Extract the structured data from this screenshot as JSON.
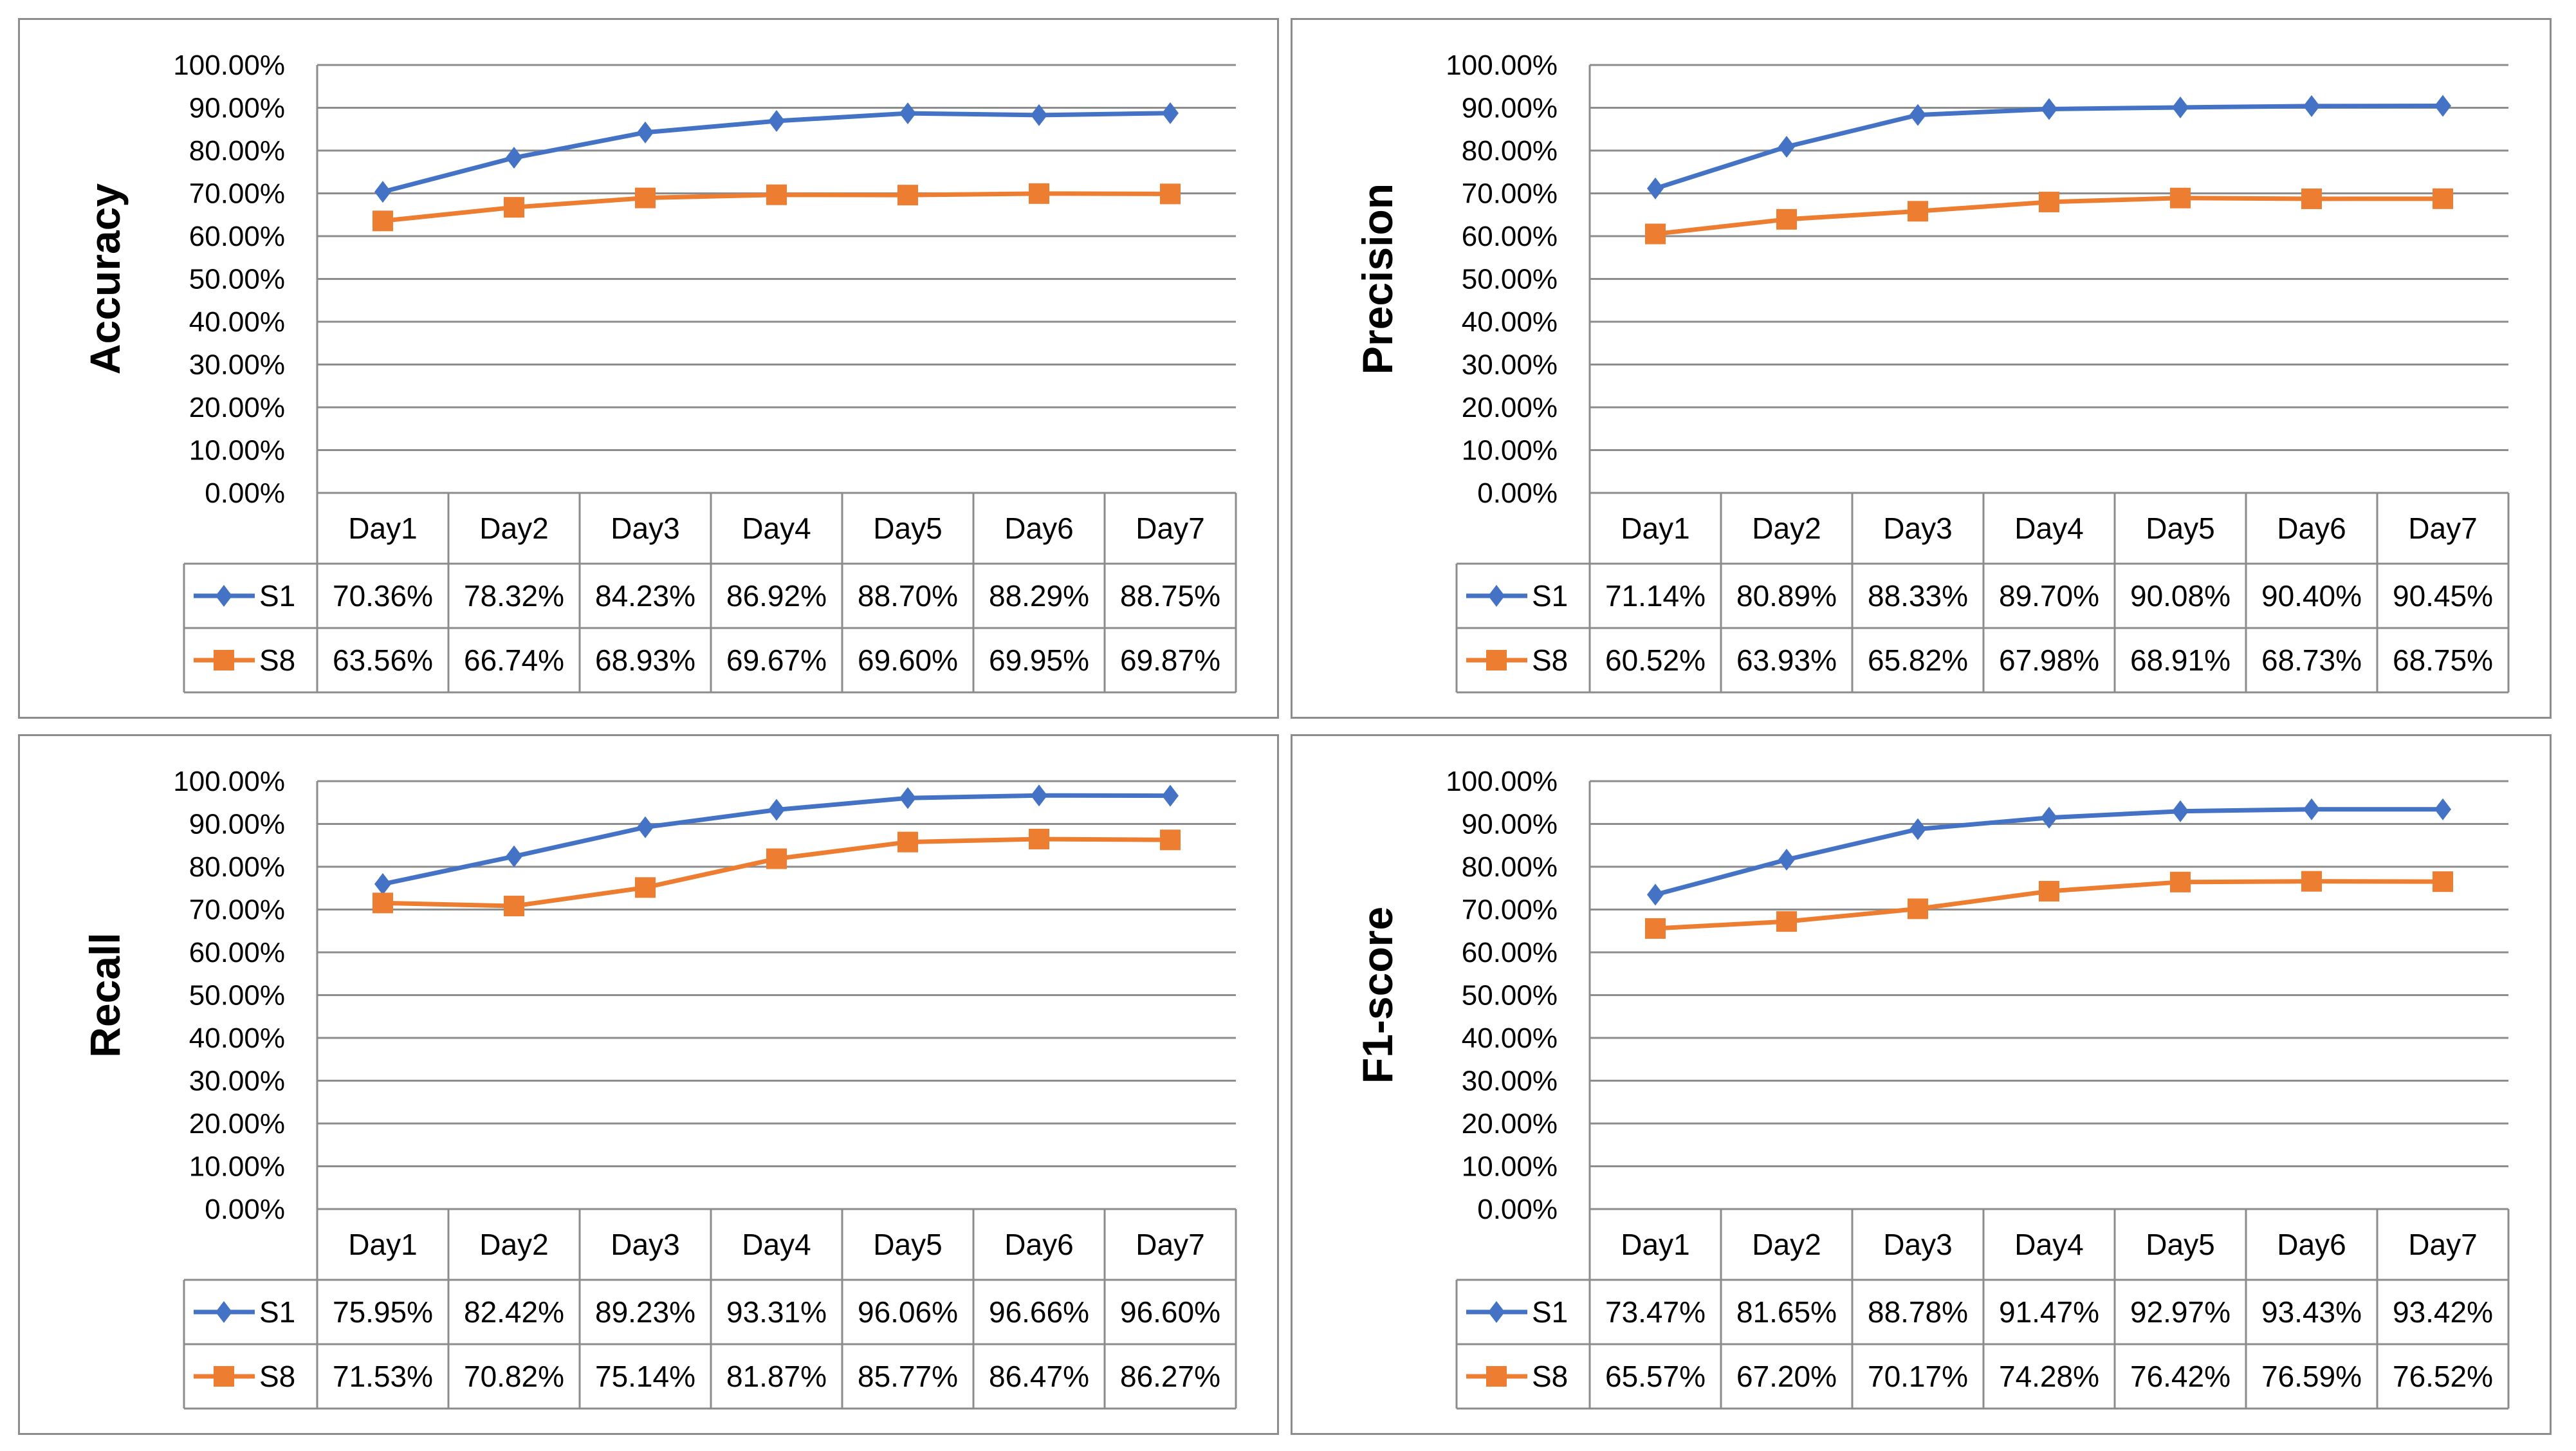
{
  "chart_data": [
    {
      "type": "line",
      "title": "",
      "ylabel": "Accuracy",
      "xlabel": "",
      "ylim": [
        0,
        100
      ],
      "yticks": [
        "0.00%",
        "10.00%",
        "20.00%",
        "30.00%",
        "40.00%",
        "50.00%",
        "60.00%",
        "70.00%",
        "80.00%",
        "90.00%",
        "100.00%"
      ],
      "categories": [
        "Day1",
        "Day2",
        "Day3",
        "Day4",
        "Day5",
        "Day6",
        "Day7"
      ],
      "data_table": true,
      "series": [
        {
          "name": "S1",
          "color": "#4472C4",
          "marker": "diamond",
          "values": [
            70.36,
            78.32,
            84.23,
            86.92,
            88.7,
            88.29,
            88.75
          ],
          "labels": [
            "70.36%",
            "78.32%",
            "84.23%",
            "86.92%",
            "88.70%",
            "88.29%",
            "88.75%"
          ]
        },
        {
          "name": "S8",
          "color": "#ED7D31",
          "marker": "square",
          "values": [
            63.56,
            66.74,
            68.93,
            69.67,
            69.6,
            69.95,
            69.87
          ],
          "labels": [
            "63.56%",
            "66.74%",
            "68.93%",
            "69.67%",
            "69.60%",
            "69.95%",
            "69.87%"
          ]
        }
      ]
    },
    {
      "type": "line",
      "title": "",
      "ylabel": "Precision",
      "xlabel": "",
      "ylim": [
        0,
        100
      ],
      "yticks": [
        "0.00%",
        "10.00%",
        "20.00%",
        "30.00%",
        "40.00%",
        "50.00%",
        "60.00%",
        "70.00%",
        "80.00%",
        "90.00%",
        "100.00%"
      ],
      "categories": [
        "Day1",
        "Day2",
        "Day3",
        "Day4",
        "Day5",
        "Day6",
        "Day7"
      ],
      "data_table": true,
      "series": [
        {
          "name": "S1",
          "color": "#4472C4",
          "marker": "diamond",
          "values": [
            71.14,
            80.89,
            88.33,
            89.7,
            90.08,
            90.4,
            90.45
          ],
          "labels": [
            "71.14%",
            "80.89%",
            "88.33%",
            "89.70%",
            "90.08%",
            "90.40%",
            "90.45%"
          ]
        },
        {
          "name": "S8",
          "color": "#ED7D31",
          "marker": "square",
          "values": [
            60.52,
            63.93,
            65.82,
            67.98,
            68.91,
            68.73,
            68.75
          ],
          "labels": [
            "60.52%",
            "63.93%",
            "65.82%",
            "67.98%",
            "68.91%",
            "68.73%",
            "68.75%"
          ]
        }
      ]
    },
    {
      "type": "line",
      "title": "",
      "ylabel": "Recall",
      "xlabel": "",
      "ylim": [
        0,
        100
      ],
      "yticks": [
        "0.00%",
        "10.00%",
        "20.00%",
        "30.00%",
        "40.00%",
        "50.00%",
        "60.00%",
        "70.00%",
        "80.00%",
        "90.00%",
        "100.00%"
      ],
      "categories": [
        "Day1",
        "Day2",
        "Day3",
        "Day4",
        "Day5",
        "Day6",
        "Day7"
      ],
      "data_table": true,
      "series": [
        {
          "name": "S1",
          "color": "#4472C4",
          "marker": "diamond",
          "values": [
            75.95,
            82.42,
            89.23,
            93.31,
            96.06,
            96.66,
            96.6
          ],
          "labels": [
            "75.95%",
            "82.42%",
            "89.23%",
            "93.31%",
            "96.06%",
            "96.66%",
            "96.60%"
          ]
        },
        {
          "name": "S8",
          "color": "#ED7D31",
          "marker": "square",
          "values": [
            71.53,
            70.82,
            75.14,
            81.87,
            85.77,
            86.47,
            86.27
          ],
          "labels": [
            "71.53%",
            "70.82%",
            "75.14%",
            "81.87%",
            "85.77%",
            "86.47%",
            "86.27%"
          ]
        }
      ]
    },
    {
      "type": "line",
      "title": "",
      "ylabel": "F1-score",
      "xlabel": "",
      "ylim": [
        0,
        100
      ],
      "yticks": [
        "0.00%",
        "10.00%",
        "20.00%",
        "30.00%",
        "40.00%",
        "50.00%",
        "60.00%",
        "70.00%",
        "80.00%",
        "90.00%",
        "100.00%"
      ],
      "categories": [
        "Day1",
        "Day2",
        "Day3",
        "Day4",
        "Day5",
        "Day6",
        "Day7"
      ],
      "data_table": true,
      "series": [
        {
          "name": "S1",
          "color": "#4472C4",
          "marker": "diamond",
          "values": [
            73.47,
            81.65,
            88.78,
            91.47,
            92.97,
            93.43,
            93.42
          ],
          "labels": [
            "73.47%",
            "81.65%",
            "88.78%",
            "91.47%",
            "92.97%",
            "93.43%",
            "93.42%"
          ]
        },
        {
          "name": "S8",
          "color": "#ED7D31",
          "marker": "square",
          "values": [
            65.57,
            67.2,
            70.17,
            74.28,
            76.42,
            76.59,
            76.52
          ],
          "labels": [
            "65.57%",
            "67.20%",
            "70.17%",
            "74.28%",
            "76.42%",
            "76.59%",
            "76.52%"
          ]
        }
      ]
    }
  ]
}
